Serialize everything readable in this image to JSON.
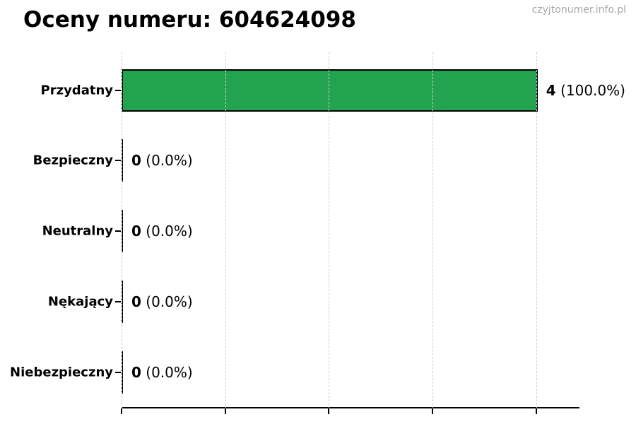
{
  "title": "Oceny numeru: 604624098",
  "watermark": "czyjtonumer.info.pl",
  "colors": {
    "bar_fill": "#22a350",
    "bar_edge": "#000000",
    "gridline": "#cdcdcd",
    "watermark_text": "#a8a8a8",
    "text": "#000000"
  },
  "chart_data": {
    "type": "bar",
    "orientation": "horizontal",
    "title": "Oceny numeru: 604624098",
    "categories": [
      "Przydatny",
      "Bezpieczny",
      "Neutralny",
      "Nękający",
      "Niebezpieczny"
    ],
    "values": [
      4,
      0,
      0,
      0,
      0
    ],
    "percentages": [
      100.0,
      0.0,
      0.0,
      0.0,
      0.0
    ],
    "rows": [
      {
        "label": "Przydatny",
        "value": 4,
        "count": "4",
        "pct": "(100.0%)"
      },
      {
        "label": "Bezpieczny",
        "value": 0,
        "count": "0",
        "pct": "(0.0%)"
      },
      {
        "label": "Neutralny",
        "value": 0,
        "count": "0",
        "pct": "(0.0%)"
      },
      {
        "label": "Nękający",
        "value": 0,
        "count": "0",
        "pct": "(0.0%)"
      },
      {
        "label": "Niebezpieczny",
        "value": 0,
        "count": "0",
        "pct": "(0.0%)"
      }
    ],
    "xlabel": "",
    "ylabel": "",
    "xlim": [
      0,
      4.42
    ],
    "x_tick_values": [
      0,
      1,
      2,
      3,
      4
    ],
    "x_tick_labels_visible": false,
    "grid": true,
    "grid_style": "dashed-vertical",
    "legend": "none",
    "data_label_format": "count (percent)"
  }
}
